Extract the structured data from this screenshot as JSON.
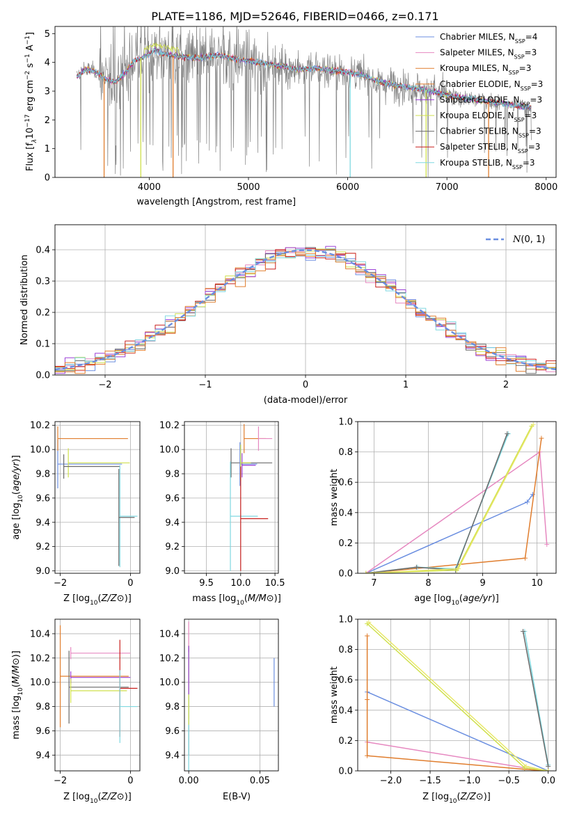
{
  "title": "PLATE=1186, MJD=52646, FIBERID=0466, z=0.171",
  "colors": {
    "gray": "#808080",
    "blue": "#6a8ee0",
    "pink": "#e688c0",
    "orange": "#e07d2d",
    "purple": "#9b3fd6",
    "yellow": "#cfe04c",
    "cyan": "#7fd8e0",
    "red": "#c8201e",
    "darkgray": "#6a6a6a",
    "lightyellow": "#e8e86a",
    "grid": "#b0b0b0"
  },
  "chart_data": [
    {
      "id": "spectrum",
      "type": "line",
      "xlabel": "wavelength [Angstrom, rest frame]",
      "ylabel_parts": {
        "a": "Flux [f",
        "b": "λ",
        "c": "10",
        "d": "−17",
        "e": " erg cm",
        "f": "−2",
        "g": " s",
        "h": "−1",
        "i": " A",
        "j": "−1",
        "k": "]"
      },
      "xlim": [
        3050,
        8100
      ],
      "ylim": [
        0,
        5.25
      ],
      "xticks": [
        4000,
        5000,
        6000,
        7000,
        8000
      ],
      "yticks": [
        0,
        1,
        2,
        3,
        4,
        5
      ],
      "legend_position": "upper right",
      "legend": [
        {
          "name": "Chabrier MILES, N",
          "sub": "SSP",
          "suffix": "=4",
          "color": "blue"
        },
        {
          "name": "Salpeter MILES, N",
          "sub": "SSP",
          "suffix": "=3",
          "color": "pink"
        },
        {
          "name": "Kroupa MILES, N",
          "sub": "SSP",
          "suffix": "=3",
          "color": "orange"
        },
        {
          "name": "Chabrier ELODIE, N",
          "sub": "SSP",
          "suffix": "=3",
          "color": "orange"
        },
        {
          "name": "Salpeter ELODIE, N",
          "sub": "SSP",
          "suffix": "=3",
          "color": "purple"
        },
        {
          "name": "Kroupa ELODIE, N",
          "sub": "SSP",
          "suffix": "=3",
          "color": "yellow"
        },
        {
          "name": "Chabrier STELIB, N",
          "sub": "SSP",
          "suffix": "=3",
          "color": "darkgray"
        },
        {
          "name": "Salpeter STELIB, N",
          "sub": "SSP",
          "suffix": "=3",
          "color": "red"
        },
        {
          "name": "Kroupa STELIB, N",
          "sub": "SSP",
          "suffix": "=3",
          "color": "cyan"
        }
      ],
      "data_continuum": {
        "x": [
          3270,
          3350,
          3450,
          3550,
          3650,
          3750,
          3850,
          3950,
          4050,
          4150,
          4300,
          4500,
          4700,
          4900,
          5100,
          5300,
          5500,
          5700,
          5900,
          6100,
          6300,
          6500,
          6700,
          6900,
          7100,
          7300,
          7500,
          7700,
          7850
        ],
        "y": [
          3.5,
          3.75,
          3.7,
          3.45,
          3.3,
          3.6,
          4.05,
          4.2,
          4.4,
          4.3,
          4.2,
          4.15,
          4.25,
          4.1,
          4.0,
          3.9,
          3.75,
          3.8,
          3.7,
          3.6,
          3.35,
          3.2,
          3.1,
          2.95,
          2.8,
          2.7,
          2.6,
          2.5,
          2.45
        ]
      },
      "drop_lines": [
        {
          "x": 3545,
          "color": "orange"
        },
        {
          "x": 3915,
          "color": "yellow"
        },
        {
          "x": 4240,
          "color": "orange"
        },
        {
          "x": 6025,
          "color": "cyan"
        },
        {
          "x": 6790,
          "color": "yellow"
        },
        {
          "x": 7420,
          "color": "orange"
        }
      ]
    },
    {
      "id": "residual-histogram",
      "type": "line",
      "xlabel": "(data-model)/error",
      "ylabel": "Normed distribution",
      "xlim": [
        -2.5,
        2.5
      ],
      "ylim": [
        0,
        0.48
      ],
      "xticks": [
        -2,
        -1,
        0,
        1,
        2
      ],
      "yticks": [
        0.0,
        0.1,
        0.2,
        0.3,
        0.4
      ],
      "bin_edges_start": -2.5,
      "bin_width": 0.1,
      "legend_position": "upper right",
      "gaussian": {
        "name": "N(0,1)",
        "color": "blue",
        "style": "dashed"
      }
    },
    {
      "id": "age-vs-Z",
      "type": "scatter",
      "xlabel": "Z [log10(Z/Z⊙)]",
      "ylabel": "age  [log10(age/yr)]",
      "xlim": [
        -2.15,
        0.27
      ],
      "ylim": [
        8.98,
        10.23
      ],
      "xticks": [
        -2,
        0
      ],
      "yticks": [
        9.0,
        9.2,
        9.4,
        9.6,
        9.8,
        10.0,
        10.2
      ],
      "points": [
        {
          "x": -2.07,
          "y": 9.88,
          "xerr": 1.83,
          "yerr": 0.2,
          "color": "blue"
        },
        {
          "x": -2.07,
          "y": 10.09,
          "xerr": 2.0,
          "yerr": 0.1,
          "color": "orange"
        },
        {
          "x": -1.77,
          "y": 9.89,
          "xerr": 1.75,
          "yerr": 0.12,
          "color": "yellow"
        },
        {
          "x": -1.9,
          "y": 9.86,
          "xerr": 1.6,
          "yerr": 0.1,
          "color": "darkgray"
        },
        {
          "x": -0.3,
          "y": 9.45,
          "xerr": 0.5,
          "yerr": 0.42,
          "color": "cyan"
        },
        {
          "x": -0.33,
          "y": 9.44,
          "xerr": 0.45,
          "yerr": 0.4,
          "color": "darkgray"
        }
      ]
    },
    {
      "id": "age-vs-mass",
      "type": "scatter",
      "xlabel": "mass [log10(M/M⊙)]",
      "ylabel": "",
      "xlim": [
        9.18,
        10.55
      ],
      "ylim": [
        8.98,
        10.23
      ],
      "xticks": [
        9.5,
        10.0,
        10.5
      ],
      "yticks": [
        9.0,
        9.2,
        9.4,
        9.6,
        9.8,
        10.0,
        10.2
      ],
      "points": [
        {
          "x": 9.86,
          "y": 9.89,
          "xerr": 0.6,
          "yerr": 0.12,
          "color": "darkgray"
        },
        {
          "x": 10.05,
          "y": 10.09,
          "xerr": 0.32,
          "yerr": 0.12,
          "color": "orange"
        },
        {
          "x": 10.26,
          "y": 10.09,
          "xerr": 0.2,
          "yerr": 0.1,
          "color": "pink"
        },
        {
          "x": 9.99,
          "y": 9.88,
          "xerr": 0.25,
          "yerr": 0.18,
          "color": "blue"
        },
        {
          "x": 10.02,
          "y": 9.87,
          "xerr": 0.2,
          "yerr": 0.1,
          "color": "purple"
        },
        {
          "x": 10.0,
          "y": 9.89,
          "xerr": 0.15,
          "yerr": 0.15,
          "color": "yellow"
        },
        {
          "x": 9.85,
          "y": 9.45,
          "xerr": 0.4,
          "yerr": 0.45,
          "color": "cyan"
        },
        {
          "x": 10.0,
          "y": 9.43,
          "xerr": 0.4,
          "yerr": 0.43,
          "color": "red"
        }
      ]
    },
    {
      "id": "mass-weight-vs-age",
      "type": "line",
      "xlabel": "age  [log10(age/yr)]",
      "ylabel": "mass weight",
      "xlim": [
        6.7,
        10.35
      ],
      "ylim": [
        0,
        1.0
      ],
      "xticks": [
        7,
        8,
        9,
        10
      ],
      "yticks": [
        0.0,
        0.2,
        0.4,
        0.6,
        0.8,
        1.0
      ],
      "series": [
        {
          "color": "blue",
          "x": [
            6.85,
            9.82,
            9.92
          ],
          "y": [
            0.0,
            0.47,
            0.52
          ]
        },
        {
          "color": "pink",
          "x": [
            6.85,
            10.05,
            10.18
          ],
          "y": [
            0.0,
            0.8,
            0.19
          ]
        },
        {
          "color": "orange",
          "x": [
            6.85,
            9.78,
            10.08
          ],
          "y": [
            0.0,
            0.1,
            0.89
          ]
        },
        {
          "color": "cyan",
          "x": [
            6.85,
            7.8,
            8.5,
            9.47
          ],
          "y": [
            0.0,
            0.04,
            0.03,
            0.92
          ]
        },
        {
          "color": "darkgray",
          "x": [
            6.85,
            7.78,
            8.5,
            9.45
          ],
          "y": [
            0.0,
            0.04,
            0.02,
            0.92
          ]
        },
        {
          "color": "yellow",
          "x": [
            6.85,
            8.52,
            9.9
          ],
          "y": [
            0.0,
            0.02,
            0.97
          ]
        },
        {
          "color": "lightyellow",
          "x": [
            6.85,
            8.55,
            9.93
          ],
          "y": [
            0.0,
            0.03,
            0.98
          ]
        }
      ]
    },
    {
      "id": "mass-vs-Z",
      "type": "scatter",
      "xlabel": "Z [log10(Z/Z⊙)]",
      "ylabel": "mass [log10(M/M⊙)]",
      "xlim": [
        -2.15,
        0.27
      ],
      "ylim": [
        9.27,
        10.52
      ],
      "xticks": [
        -2,
        0
      ],
      "yticks": [
        9.4,
        9.6,
        9.8,
        10.0,
        10.2,
        10.4
      ],
      "points": [
        {
          "x": -1.7,
          "y": 10.24,
          "xerr": 1.7,
          "yerr": 0.05,
          "color": "pink"
        },
        {
          "x": -2.0,
          "y": 10.05,
          "xerr": 1.95,
          "yerr": 0.42,
          "color": "orange"
        },
        {
          "x": -1.7,
          "y": 10.04,
          "xerr": 1.7,
          "yerr": 0.05,
          "color": "purple"
        },
        {
          "x": -1.75,
          "y": 9.96,
          "xerr": 1.7,
          "yerr": 0.3,
          "color": "darkgray"
        },
        {
          "x": -1.7,
          "y": 9.93,
          "xerr": 1.6,
          "yerr": 0.1,
          "color": "yellow"
        },
        {
          "x": -0.3,
          "y": 9.95,
          "xerr": 0.5,
          "yerr": 0.4,
          "color": "red"
        },
        {
          "x": -0.3,
          "y": 9.8,
          "xerr": 0.5,
          "yerr": 0.3,
          "color": "cyan"
        }
      ]
    },
    {
      "id": "mass-vs-ebv",
      "type": "scatter",
      "xlabel": "E(B-V)",
      "ylabel": "",
      "xlim": [
        -0.003,
        0.063
      ],
      "ylim": [
        9.27,
        10.52
      ],
      "xticks": [
        0.0,
        0.05
      ],
      "yticks": [
        9.4,
        9.6,
        9.8,
        10.0,
        10.2,
        10.4
      ],
      "points": [
        {
          "x": 0.0,
          "y": 10.25,
          "yerr": 0.25,
          "color": "pink"
        },
        {
          "x": 0.0,
          "y": 10.0,
          "yerr": 0.3,
          "color": "orange"
        },
        {
          "x": 0.0,
          "y": 9.85,
          "yerr": 0.45,
          "color": "darkgray"
        },
        {
          "x": 0.0,
          "y": 9.75,
          "yerr": 0.5,
          "color": "cyan"
        },
        {
          "x": 0.0,
          "y": 9.95,
          "yerr": 0.3,
          "color": "yellow"
        },
        {
          "x": 0.0,
          "y": 10.1,
          "yerr": 0.2,
          "color": "purple"
        },
        {
          "x": 0.06,
          "y": 10.0,
          "yerr": 0.2,
          "color": "blue"
        }
      ]
    },
    {
      "id": "mass-weight-vs-Z",
      "type": "line",
      "xlabel": "Z [log10(Z/Z⊙)]",
      "ylabel": "mass weight",
      "xlim": [
        -2.42,
        0.1
      ],
      "ylim": [
        0,
        1.0
      ],
      "xticks": [
        -2.0,
        -1.5,
        -1.0,
        -0.5,
        0.0
      ],
      "yticks": [
        0.0,
        0.2,
        0.4,
        0.6,
        0.8,
        1.0
      ],
      "series": [
        {
          "color": "blue",
          "x": [
            -2.3,
            0.0
          ],
          "y": [
            0.52,
            0.0
          ]
        },
        {
          "color": "pink",
          "x": [
            -2.3,
            -0.3,
            0.0
          ],
          "y": [
            0.19,
            0.02,
            0.0
          ]
        },
        {
          "color": "orange",
          "x": [
            -2.3,
            -2.3,
            -2.3,
            -0.3,
            0.0
          ],
          "y": [
            0.89,
            0.47,
            0.1,
            0.01,
            0.0
          ]
        },
        {
          "color": "yellow",
          "x": [
            -2.3,
            -0.3,
            0.0
          ],
          "y": [
            0.97,
            0.02,
            0.0
          ]
        },
        {
          "color": "lightyellow",
          "x": [
            -2.28,
            -0.28,
            0.0
          ],
          "y": [
            0.98,
            0.03,
            0.0
          ]
        },
        {
          "color": "cyan",
          "x": [
            -0.3,
            0.0
          ],
          "y": [
            0.92,
            0.04
          ]
        },
        {
          "color": "darkgray",
          "x": [
            -0.32,
            0.0
          ],
          "y": [
            0.92,
            0.03
          ]
        }
      ]
    }
  ]
}
